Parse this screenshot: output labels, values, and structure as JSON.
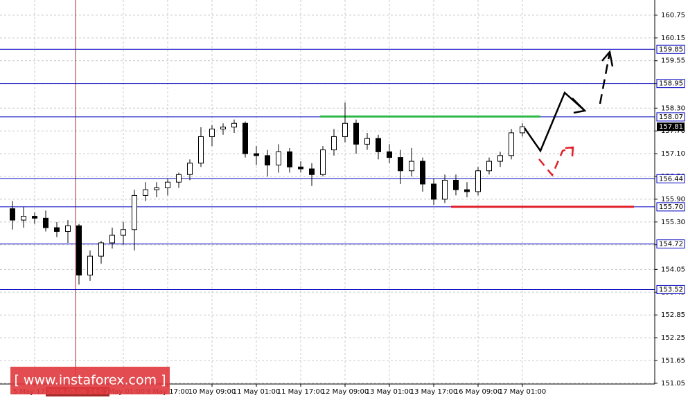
{
  "chart_data": {
    "type": "candlestick",
    "categories": [
      null,
      null,
      "5 May 17:00",
      null,
      null,
      null,
      "2016.05.06 14:00",
      null,
      null,
      null,
      "9 May 01:00",
      null,
      null,
      null,
      "9 May 17:00",
      null,
      null,
      null,
      "10 May 09:00",
      null,
      null,
      null,
      "11 May 01:00",
      null,
      null,
      null,
      "11 May 17:00",
      null,
      null,
      null,
      "12 May 09:00",
      null,
      null,
      null,
      "13 May 01:00",
      null,
      null,
      null,
      "13 May 17:00",
      null,
      null,
      null,
      "16 May 09:00",
      null,
      null,
      null,
      "17 May 01:00"
    ],
    "open": [
      155.65,
      155.35,
      155.45,
      155.4,
      155.15,
      155.05,
      155.2,
      153.9,
      154.4,
      154.75,
      154.95,
      155.1,
      156.0,
      156.15,
      156.2,
      156.35,
      156.55,
      156.85,
      157.55,
      157.75,
      157.8,
      157.9,
      157.1,
      157.05,
      156.8,
      157.15,
      156.75,
      156.7,
      156.55,
      157.2,
      157.55,
      157.9,
      157.35,
      157.5,
      157.15,
      157.0,
      156.65,
      156.9,
      156.3,
      155.9,
      156.4,
      156.15,
      156.1,
      156.65,
      156.9,
      157.05,
      157.65
    ],
    "high": [
      155.85,
      155.7,
      155.55,
      155.6,
      155.3,
      155.35,
      155.25,
      154.55,
      154.8,
      155.15,
      155.3,
      156.15,
      156.35,
      156.35,
      156.45,
      156.6,
      156.95,
      157.8,
      157.85,
      157.9,
      158.0,
      157.95,
      157.3,
      157.2,
      157.35,
      157.25,
      156.9,
      156.85,
      157.3,
      157.75,
      158.45,
      158.0,
      157.65,
      157.6,
      157.35,
      157.2,
      157.25,
      157.0,
      156.45,
      156.55,
      156.55,
      156.35,
      156.75,
      157.0,
      157.15,
      157.75,
      157.9
    ],
    "low": [
      155.1,
      155.15,
      155.25,
      155.05,
      154.9,
      154.75,
      153.65,
      153.75,
      154.2,
      154.6,
      154.7,
      154.55,
      155.85,
      155.95,
      156.0,
      156.2,
      156.4,
      156.75,
      157.3,
      157.6,
      157.65,
      157.0,
      156.8,
      156.5,
      156.6,
      156.6,
      156.6,
      156.25,
      156.5,
      157.05,
      157.4,
      157.1,
      157.2,
      156.95,
      156.85,
      156.3,
      156.5,
      156.1,
      155.75,
      155.8,
      156.0,
      155.95,
      156.0,
      156.55,
      156.75,
      156.95,
      157.55
    ],
    "close": [
      155.35,
      155.45,
      155.4,
      155.15,
      155.05,
      155.2,
      153.9,
      154.4,
      154.75,
      154.95,
      155.1,
      156.0,
      156.15,
      156.2,
      156.35,
      156.55,
      156.85,
      157.55,
      157.75,
      157.8,
      157.9,
      157.1,
      157.05,
      156.8,
      157.15,
      156.75,
      156.7,
      156.55,
      157.2,
      157.55,
      157.9,
      157.35,
      157.5,
      157.15,
      157.0,
      156.65,
      156.9,
      156.3,
      155.9,
      156.4,
      156.15,
      156.1,
      156.65,
      156.9,
      157.05,
      157.65,
      157.81
    ],
    "ylim": [
      151.03,
      161.15
    ],
    "yticks": [
      160.75,
      160.15,
      159.55,
      158.95,
      {
        "value": 158.3,
        "label": "158.30"
      },
      {
        "value": 157.7,
        "label": "157.70"
      },
      {
        "value": 157.1,
        "label": "157.10"
      },
      {
        "value": 156.5,
        "label": "156.50"
      },
      {
        "value": 155.9,
        "label": "155.90"
      },
      {
        "value": 155.3,
        "label": "155.30"
      },
      {
        "value": 154.7,
        "label": "154.70"
      },
      154.05,
      153.45,
      152.85,
      152.25,
      151.65,
      151.05
    ],
    "grid": true,
    "levels": [
      159.85,
      158.95,
      158.07,
      156.44,
      {
        "value": 155.7,
        "label": "155.70"
      },
      154.72,
      153.52
    ],
    "level_color": "#0000c0",
    "last_price": 157.81,
    "support_resistance": [
      {
        "value": 158.08,
        "color": "#2db84a"
      },
      {
        "value": 155.7,
        "color": "#e01e28"
      }
    ],
    "marker_line": {
      "at": "2016.05.06 14:00",
      "color": "#a52a2a"
    },
    "watermark": "[ www.instaforex.com ]"
  }
}
